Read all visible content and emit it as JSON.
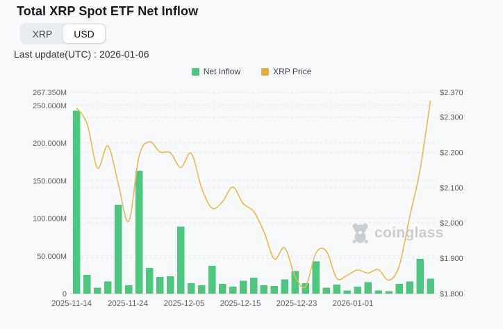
{
  "header": {
    "title": "Total XRP Spot ETF Net Inflow"
  },
  "toggle": {
    "xrp_label": "XRP",
    "usd_label": "USD",
    "active": "USD"
  },
  "meta": {
    "last_update": "Last update(UTC) : 2026-01-06"
  },
  "legend": [
    {
      "label": "Net Inflow",
      "color": "#4cc77e"
    },
    {
      "label": "XRP Price",
      "color": "#e5af3d"
    }
  ],
  "watermark": {
    "text": "coinglass"
  },
  "colors": {
    "bar_green": "#4cc77e",
    "line_amber": "#e9b84d",
    "grid": "#e6e7ea",
    "axis_line": "#d4d7db",
    "axis_text": "#5b6066"
  },
  "chart_data": {
    "type": "bar",
    "title": "Total XRP Spot ETF Net Inflow",
    "x_labels": [
      "2025-11-14",
      "2025-11-24",
      "2025-12-05",
      "2025-12-15",
      "2025-12-23",
      "2026-01-01"
    ],
    "series": [
      {
        "name": "Net Inflow",
        "type": "bar",
        "unit": "USD millions",
        "color": "#4cc77e",
        "values": [
          243,
          25,
          8,
          16,
          118,
          11,
          163,
          34,
          22,
          23,
          89,
          14,
          11,
          37,
          13,
          9,
          17,
          21,
          11,
          10,
          19,
          30,
          14,
          43,
          8,
          12,
          4,
          9,
          15,
          4,
          3,
          13,
          16,
          46,
          20
        ]
      },
      {
        "name": "XRP Price",
        "type": "line",
        "unit": "USD",
        "color": "#e9b84d",
        "values": [
          2.325,
          2.28,
          2.156,
          2.218,
          2.11,
          2.005,
          2.19,
          2.23,
          2.201,
          2.199,
          2.157,
          2.197,
          2.1,
          2.042,
          2.06,
          2.102,
          2.055,
          2.033,
          1.975,
          1.898,
          1.93,
          1.848,
          1.82,
          1.915,
          1.92,
          1.843,
          1.852,
          1.867,
          1.858,
          1.868,
          1.838,
          1.878,
          2.016,
          2.15,
          2.345
        ]
      }
    ],
    "left_axis": {
      "range": [
        0,
        267.35
      ],
      "ticks": [
        {
          "value": 267.35,
          "label": "267.350M"
        },
        {
          "value": 250,
          "label": "250.000M"
        },
        {
          "value": 200,
          "label": "200.000M"
        },
        {
          "value": 150,
          "label": "150.000M"
        },
        {
          "value": 100,
          "label": "100.000M"
        },
        {
          "value": 50,
          "label": "50.000M"
        },
        {
          "value": 0,
          "label": "0"
        }
      ]
    },
    "right_axis": {
      "range": [
        1.8,
        2.37
      ],
      "ticks": [
        {
          "value": 2.37,
          "label": "$2.370"
        },
        {
          "value": 2.3,
          "label": "$2.300"
        },
        {
          "value": 2.2,
          "label": "$2.200"
        },
        {
          "value": 2.1,
          "label": "$2.100"
        },
        {
          "value": 2.0,
          "label": "$2.000"
        },
        {
          "value": 1.9,
          "label": "$1.900"
        },
        {
          "value": 1.8,
          "label": "$1.800"
        }
      ]
    },
    "legend_position": "top",
    "grid": "dashed horizontal, both axes"
  }
}
